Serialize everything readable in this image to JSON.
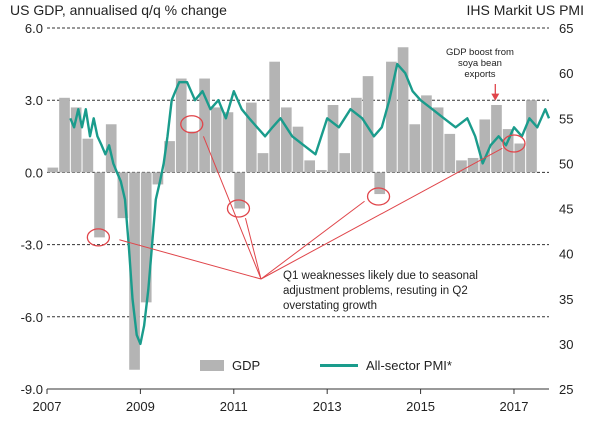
{
  "header": {
    "left_title": "US GDP, annualised q/q % change",
    "right_title": "IHS Markit US PMI"
  },
  "legend": {
    "gdp_label": "GDP",
    "pmi_label": "All-sector PMI*"
  },
  "annotations": {
    "callout_lines": [
      "Q1 weaknesses likely due to seasonal",
      "adjustment problems, resuting in Q2",
      "overstating growth"
    ],
    "boost_lines": [
      "GDP boost from",
      "soya bean",
      "exports"
    ]
  },
  "colors": {
    "gdp_bars": "#b4b4b4",
    "pmi_line": "#1a9c8c",
    "annotation": "#e0454a"
  },
  "chart_data": {
    "type": "bar",
    "left_axis": {
      "label": "US GDP, annualised q/q % change",
      "ylim": [
        -9,
        6
      ],
      "ticks": [
        -9,
        -6,
        -3,
        0,
        3,
        6
      ],
      "tick_labels": [
        "-9.0",
        "-6.0",
        "-3.0",
        "0.0",
        "3.0",
        "6.0"
      ]
    },
    "right_axis": {
      "label": "IHS Markit US PMI",
      "ylim": [
        25,
        65
      ],
      "ticks": [
        25,
        30,
        35,
        40,
        45,
        50,
        55,
        60,
        65
      ]
    },
    "x_axis": {
      "range": [
        2007,
        2017.75
      ],
      "tick_labels": [
        "2007",
        "2009",
        "2011",
        "2013",
        "2015",
        "2017"
      ]
    },
    "grid": "dashed horizontal at left-axis ticks",
    "legend_position": "bottom-center",
    "series": [
      {
        "name": "GDP",
        "kind": "bar",
        "axis": "left",
        "x": [
          "2007Q1",
          "2007Q2",
          "2007Q3",
          "2007Q4",
          "2008Q1",
          "2008Q2",
          "2008Q3",
          "2008Q4",
          "2009Q1",
          "2009Q2",
          "2009Q3",
          "2009Q4",
          "2010Q1",
          "2010Q2",
          "2010Q3",
          "2010Q4",
          "2011Q1",
          "2011Q2",
          "2011Q3",
          "2011Q4",
          "2012Q1",
          "2012Q2",
          "2012Q3",
          "2012Q4",
          "2013Q1",
          "2013Q2",
          "2013Q3",
          "2013Q4",
          "2014Q1",
          "2014Q2",
          "2014Q3",
          "2014Q4",
          "2015Q1",
          "2015Q2",
          "2015Q3",
          "2015Q4",
          "2016Q1",
          "2016Q2",
          "2016Q3",
          "2016Q4",
          "2017Q1",
          "2017Q2"
        ],
        "values": [
          0.2,
          3.1,
          2.7,
          1.4,
          -2.7,
          2.0,
          -1.9,
          -8.2,
          -5.4,
          -0.5,
          1.3,
          3.9,
          1.7,
          3.9,
          2.7,
          2.5,
          -1.5,
          2.9,
          0.8,
          4.6,
          2.7,
          1.9,
          0.5,
          0.1,
          2.8,
          0.8,
          3.1,
          4.0,
          -0.9,
          4.6,
          5.2,
          2.0,
          3.2,
          2.7,
          1.6,
          0.5,
          0.6,
          2.2,
          2.8,
          1.8,
          1.2,
          3.0
        ]
      },
      {
        "name": "All-sector PMI*",
        "kind": "line",
        "axis": "right",
        "x": [
          2007.5,
          2007.58,
          2007.67,
          2007.75,
          2007.83,
          2007.92,
          2008.0,
          2008.08,
          2008.17,
          2008.25,
          2008.33,
          2008.42,
          2008.5,
          2008.58,
          2008.67,
          2008.75,
          2008.83,
          2008.92,
          2009.0,
          2009.08,
          2009.17,
          2009.25,
          2009.33,
          2009.42,
          2009.5,
          2009.58,
          2009.67,
          2009.75,
          2009.83,
          2009.92,
          2010.0,
          2010.17,
          2010.33,
          2010.5,
          2010.67,
          2010.83,
          2011.0,
          2011.17,
          2011.33,
          2011.5,
          2011.67,
          2011.83,
          2012.0,
          2012.25,
          2012.5,
          2012.75,
          2013.0,
          2013.25,
          2013.5,
          2013.75,
          2014.0,
          2014.17,
          2014.33,
          2014.5,
          2014.67,
          2014.83,
          2015.0,
          2015.25,
          2015.5,
          2015.75,
          2016.0,
          2016.17,
          2016.33,
          2016.5,
          2016.67,
          2016.83,
          2017.0,
          2017.17,
          2017.33,
          2017.5,
          2017.67,
          2017.75
        ],
        "values": [
          55,
          54,
          56,
          54,
          56,
          53,
          55,
          53,
          52,
          51,
          52,
          50,
          49,
          48,
          46,
          41,
          35,
          31,
          30,
          32,
          36,
          41,
          46,
          48,
          50,
          53,
          57,
          58,
          59,
          59,
          59,
          57,
          58,
          56,
          57,
          55,
          58,
          56,
          55,
          54,
          53,
          54,
          55,
          53,
          52,
          51,
          55,
          54,
          56,
          55,
          53,
          54,
          57,
          61,
          60,
          58,
          57,
          56,
          55,
          54,
          55,
          53,
          50,
          52,
          53,
          52,
          54,
          53,
          55,
          54,
          56,
          55
        ]
      }
    ]
  }
}
